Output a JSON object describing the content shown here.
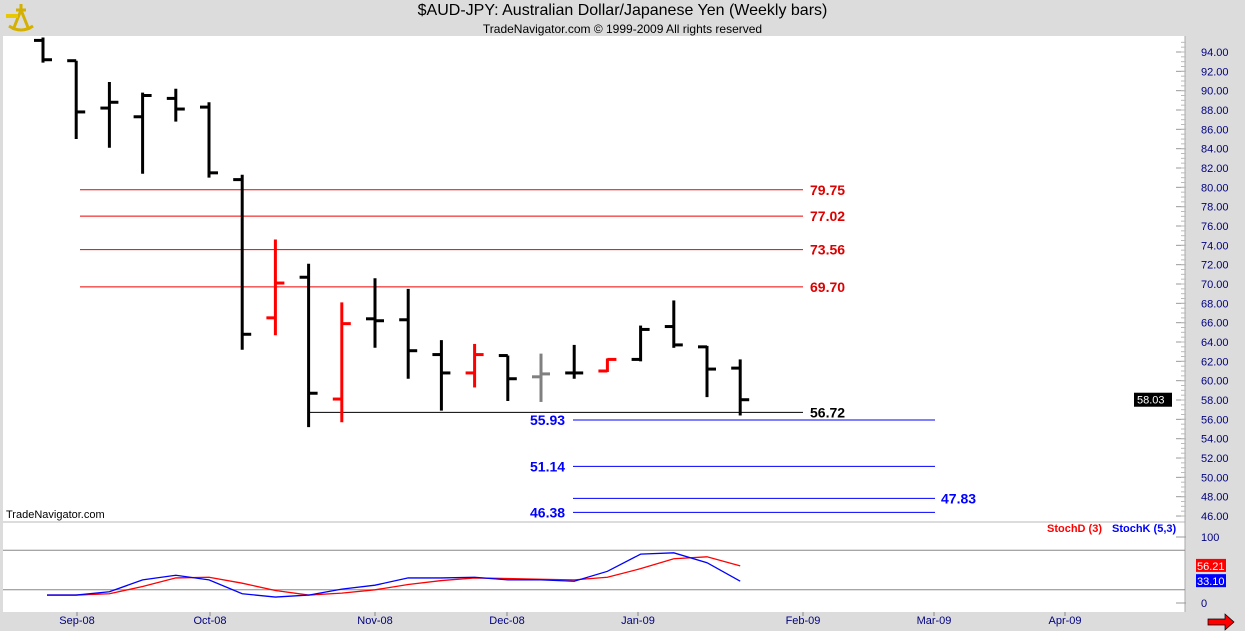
{
  "header": {
    "title": "$AUD-JPY:  Australian Dollar/Japanese Yen  (Weekly bars)",
    "subtitle": "TradeNavigator.com © 1999-2009 All rights reserved"
  },
  "watermark": "TradeNavigator.com",
  "chart_data": [
    {
      "type": "ohlc",
      "ylim": [
        45,
        96
      ],
      "yticks": [
        46,
        48,
        50,
        52,
        54,
        56,
        58,
        60,
        62,
        64,
        66,
        68,
        70,
        72,
        74,
        76,
        78,
        80,
        82,
        84,
        86,
        88,
        90,
        92,
        94
      ],
      "last_price_label": "58.03",
      "x_tick_labels": [
        "Sep-08",
        "Oct-08",
        "Nov-08",
        "Dec-08",
        "Jan-09",
        "Feb-09",
        "Mar-09",
        "Apr-09"
      ],
      "bars": [
        {
          "o": 95.2,
          "h": 95.5,
          "l": 92.9,
          "c": 93.2,
          "color": "#000000"
        },
        {
          "o": 93.1,
          "h": 93.1,
          "l": 85.0,
          "c": 87.8,
          "color": "#000000"
        },
        {
          "o": 88.2,
          "h": 90.9,
          "l": 84.1,
          "c": 88.8,
          "color": "#000000"
        },
        {
          "o": 87.3,
          "h": 89.8,
          "l": 81.4,
          "c": 89.5,
          "color": "#000000"
        },
        {
          "o": 89.2,
          "h": 90.2,
          "l": 86.8,
          "c": 88.1,
          "color": "#000000"
        },
        {
          "o": 88.3,
          "h": 88.8,
          "l": 81.0,
          "c": 81.5,
          "color": "#000000"
        },
        {
          "o": 80.8,
          "h": 81.3,
          "l": 63.2,
          "c": 64.8,
          "color": "#000000"
        },
        {
          "o": 66.5,
          "h": 74.6,
          "l": 64.7,
          "c": 70.1,
          "color": "#ff0000"
        },
        {
          "o": 70.7,
          "h": 72.1,
          "l": 55.2,
          "c": 58.7,
          "color": "#000000"
        },
        {
          "o": 58.1,
          "h": 68.1,
          "l": 55.7,
          "c": 65.9,
          "color": "#ff0000"
        },
        {
          "o": 66.4,
          "h": 70.6,
          "l": 63.4,
          "c": 66.2,
          "color": "#000000"
        },
        {
          "o": 66.3,
          "h": 69.5,
          "l": 60.2,
          "c": 63.1,
          "color": "#000000"
        },
        {
          "o": 62.7,
          "h": 64.2,
          "l": 56.9,
          "c": 60.8,
          "color": "#000000"
        },
        {
          "o": 60.8,
          "h": 63.8,
          "l": 59.3,
          "c": 62.7,
          "color": "#ff0000"
        },
        {
          "o": 62.6,
          "h": 62.6,
          "l": 57.9,
          "c": 60.2,
          "color": "#000000"
        },
        {
          "o": 60.4,
          "h": 62.8,
          "l": 57.8,
          "c": 60.7,
          "color": "#808080"
        },
        {
          "o": 60.8,
          "h": 63.7,
          "l": 60.2,
          "c": 60.8,
          "color": "#000000"
        },
        {
          "o": 61.0,
          "h": 62.3,
          "l": 60.9,
          "c": 62.2,
          "color": "#ff0000"
        },
        {
          "o": 62.2,
          "h": 65.7,
          "l": 62.0,
          "c": 65.3,
          "color": "#000000"
        },
        {
          "o": 65.6,
          "h": 68.3,
          "l": 63.4,
          "c": 63.7,
          "color": "#000000"
        },
        {
          "o": 63.5,
          "h": 63.6,
          "l": 58.3,
          "c": 61.2,
          "color": "#000000"
        },
        {
          "o": 61.3,
          "h": 62.2,
          "l": 56.4,
          "c": 58.03,
          "color": "#000000"
        }
      ],
      "levels": [
        {
          "value": 79.75,
          "label": "79.75",
          "color": "#cc0000"
        },
        {
          "value": 77.02,
          "label": "77.02",
          "color": "#cc0000"
        },
        {
          "value": 73.56,
          "label": "73.56",
          "color": "#cc0000"
        },
        {
          "value": 69.7,
          "label": "69.70",
          "color": "#cc0000"
        },
        {
          "value": 56.72,
          "label": "56.72",
          "color": "#000000"
        },
        {
          "value": 55.93,
          "label": "55.93",
          "color": "#0000ff"
        },
        {
          "value": 51.14,
          "label": "51.14",
          "color": "#0000ff"
        },
        {
          "value": 47.83,
          "label": "47.83",
          "color": "#0000ff"
        },
        {
          "value": 46.38,
          "label": "46.38",
          "color": "#0000ff"
        }
      ]
    },
    {
      "type": "line",
      "ylim": [
        0,
        100
      ],
      "yticks": [
        0,
        100
      ],
      "ref_lines": [
        20,
        80
      ],
      "series": [
        {
          "name": "StochD (3)",
          "color": "#ff0000",
          "last_label": "56.21",
          "values": [
            12,
            12,
            14,
            25,
            38,
            39,
            30,
            19,
            12,
            15,
            20,
            28,
            34,
            38,
            37,
            36,
            35,
            39,
            52,
            67,
            70,
            56.21
          ]
        },
        {
          "name": "StochK (5,3)",
          "color": "#0000ff",
          "last_label": "33.10",
          "values": [
            12,
            12,
            17,
            35,
            42,
            35,
            14,
            9,
            12,
            21,
            27,
            38,
            38,
            39,
            35,
            35,
            33,
            48,
            74,
            76,
            61,
            33.1
          ]
        }
      ]
    }
  ]
}
